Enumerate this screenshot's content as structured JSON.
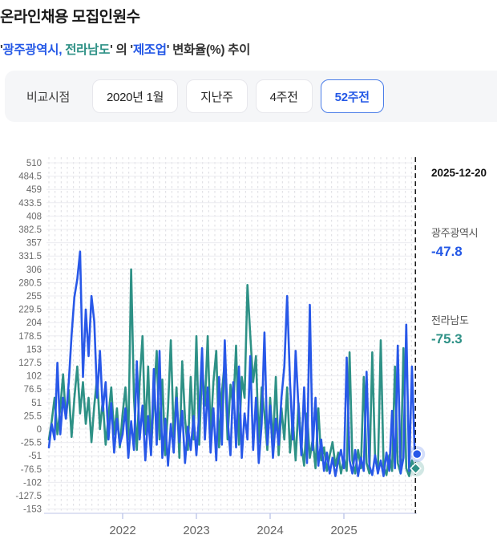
{
  "header": {
    "title": "온라인채용 모집인원수",
    "subtitle_segments": [
      {
        "text": "'",
        "color": "#333333"
      },
      {
        "text": "광주광역시,",
        "color": "#2458e6"
      },
      {
        "text": " 전라남도",
        "color": "#2e9186"
      },
      {
        "text": "' 의 '",
        "color": "#333333"
      },
      {
        "text": "제조업",
        "color": "#2458e6"
      },
      {
        "text": "' 변화율(%) 추이",
        "color": "#333333"
      }
    ]
  },
  "filter_bar": {
    "label": "비교시점",
    "options": [
      {
        "label": "2020년 1월",
        "selected": false
      },
      {
        "label": "지난주",
        "selected": false
      },
      {
        "label": "4주전",
        "selected": false
      },
      {
        "label": "52주전",
        "selected": true
      }
    ],
    "selected_color": "#2458e6"
  },
  "annotations": {
    "end_date": "2025-12-20",
    "series_labels": [
      {
        "name": "광주광역시",
        "value": "-47.8",
        "color": "#2458e6"
      },
      {
        "name": "전라남도",
        "value": "-75.3",
        "color": "#2e9186"
      }
    ]
  },
  "chart_data": {
    "type": "line",
    "title": "온라인채용 모집인원수 — '광주광역시, 전라남도' 의 '제조업' 변화율(%) 추이",
    "ylabel": "변화율(%)",
    "y_min": -153,
    "y_max": 510,
    "y_tick_step": 25.5,
    "x_start": 2021.0,
    "x_step_years": 0.03846,
    "x_end": 2025.97,
    "x_ticks": [
      "2022",
      "2023",
      "2024",
      "2025"
    ],
    "grid": true,
    "end_line_date": "2025-12-20",
    "series": [
      {
        "name": "광주광역시",
        "color": "#2858e8",
        "marker": "circle",
        "end_value": -47.8,
        "values": [
          -35,
          10,
          -20,
          127,
          -10,
          60,
          20,
          90,
          180,
          253,
          287,
          340,
          100,
          229,
          140,
          255,
          206,
          60,
          150,
          35,
          90,
          -20,
          50,
          -45,
          20,
          -30,
          -10,
          40,
          -55,
          15,
          -40,
          130,
          -20,
          45,
          -60,
          25,
          -50,
          115,
          -30,
          150,
          -55,
          20,
          -70,
          10,
          -45,
          60,
          -25,
          35,
          -65,
          5,
          -40,
          25,
          -50,
          30,
          155,
          -20,
          80,
          -45,
          40,
          -60,
          100,
          -30,
          170,
          20,
          -50,
          90,
          -35,
          120,
          -55,
          30,
          -20,
          140,
          -40,
          60,
          -65,
          10,
          185,
          -30,
          45,
          -55,
          20,
          -30,
          60,
          120,
          255,
          90,
          -20,
          150,
          40,
          -50,
          80,
          -65,
          238,
          -40,
          60,
          -70,
          -20,
          -80,
          -45,
          -85,
          -55,
          -90,
          -60,
          -40,
          -75,
          137,
          -60,
          -85,
          -40,
          -90,
          -55,
          -80,
          110,
          -70,
          -88,
          -50,
          -85,
          -60,
          -90,
          -45,
          -80,
          35,
          -75,
          160,
          -85,
          -55,
          200,
          -80,
          120,
          -47.8
        ]
      },
      {
        "name": "전라남도",
        "color": "#2e9186",
        "marker": "diamond",
        "end_value": -75.3,
        "values": [
          -20,
          15,
          60,
          -10,
          40,
          105,
          20,
          75,
          -15,
          60,
          120,
          30,
          90,
          10,
          60,
          -25,
          45,
          100,
          0,
          55,
          -30,
          25,
          80,
          -10,
          40,
          -35,
          30,
          80,
          -20,
          306,
          60,
          -40,
          90,
          178,
          -10,
          120,
          -45,
          60,
          150,
          -20,
          95,
          -50,
          40,
          170,
          -15,
          80,
          -55,
          130,
          20,
          -40,
          100,
          -20,
          178,
          -30,
          120,
          45,
          178,
          -10,
          90,
          150,
          -35,
          70,
          130,
          -20,
          85,
          40,
          160,
          -30,
          100,
          60,
          276,
          180,
          90,
          140,
          -25,
          80,
          30,
          -40,
          60,
          -30,
          100,
          -50,
          40,
          -20,
          80,
          -45,
          20,
          -60,
          50,
          -30,
          -70,
          30,
          -55,
          -20,
          -75,
          40,
          -60,
          -35,
          -80,
          -50,
          -25,
          -70,
          -45,
          -85,
          -55,
          -80,
          147,
          -60,
          -85,
          -40,
          -75,
          100,
          -65,
          -85,
          147,
          -55,
          -80,
          170,
          -70,
          -88,
          -50,
          -80,
          120,
          -65,
          -85,
          155,
          -75,
          -90,
          -60,
          -75.3
        ]
      }
    ]
  }
}
